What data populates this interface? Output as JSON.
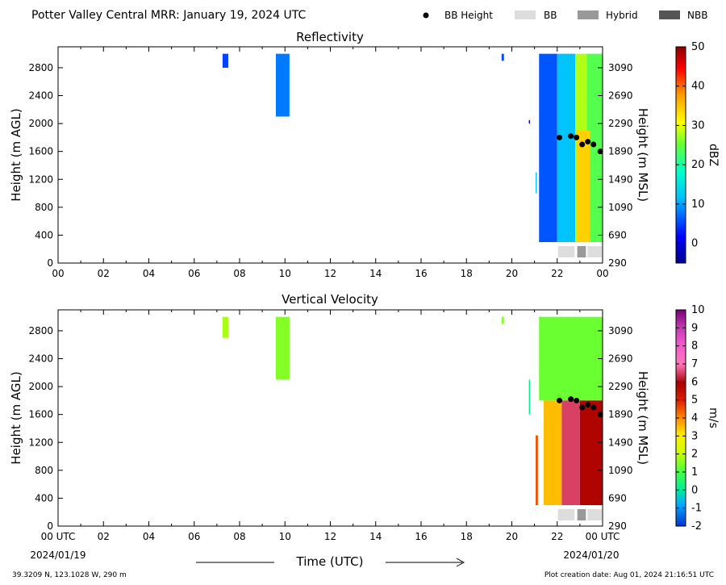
{
  "header": {
    "title": "Potter Valley Central MRR:  January 19, 2024 UTC",
    "legend": [
      {
        "label": "BB Height",
        "kind": "marker",
        "color": "#000000"
      },
      {
        "label": "BB",
        "kind": "swatch",
        "color": "#dddddd"
      },
      {
        "label": "Hybrid",
        "kind": "swatch",
        "color": "#999999"
      },
      {
        "label": "NBB",
        "kind": "swatch",
        "color": "#555555"
      }
    ]
  },
  "footer": {
    "location": "39.3209 N, 123.1028 W, 290 m",
    "creation": "Plot creation date: Aug 01, 2024 21:16:51 UTC",
    "xlabel": "Time (UTC)",
    "start_date": "2024/01/19",
    "end_date": "2024/01/20"
  },
  "colors": {
    "bb": "#dddddd",
    "hybrid": "#999999",
    "nbb": "#555555",
    "marker": "#000000",
    "axis": "#000000"
  },
  "chart_data": [
    {
      "type": "heatmap",
      "title": "Reflectivity",
      "xlabel": "",
      "ylabel": "Height (m AGL)",
      "ylabel_right": "Height (m MSL)",
      "colorbar_label": "dBZ",
      "xlim": [
        0,
        24
      ],
      "ylim": [
        0,
        3100
      ],
      "xticks": [
        "00",
        "02",
        "04",
        "06",
        "08",
        "10",
        "12",
        "14",
        "16",
        "18",
        "20",
        "22",
        "00"
      ],
      "yticks": [
        0,
        400,
        800,
        1200,
        1600,
        2000,
        2400,
        2800
      ],
      "yticks_right": [
        "290",
        "690",
        "1090",
        "1490",
        "1890",
        "2290",
        "2690",
        "3090"
      ],
      "colorbar_ticks": [
        "0",
        "10",
        "20",
        "30",
        "40",
        "50"
      ],
      "colorbar_range": [
        -5,
        50
      ],
      "colorscale": "jet",
      "echoes": [
        {
          "t0": 7.25,
          "t1": 7.5,
          "bottom": 2800,
          "top": 3000,
          "value": 5
        },
        {
          "t0": 9.6,
          "t1": 10.2,
          "bottom": 2100,
          "top": 3000,
          "value": 8
        },
        {
          "t0": 19.55,
          "t1": 19.65,
          "bottom": 2900,
          "top": 3000,
          "value": 5
        },
        {
          "t0": 20.75,
          "t1": 20.8,
          "bottom": 2000,
          "top": 2050,
          "value": 0
        },
        {
          "t0": 21.05,
          "t1": 21.1,
          "bottom": 1000,
          "top": 1300,
          "value": 12
        },
        {
          "t0": 21.2,
          "t1": 22.0,
          "bottom": 300,
          "top": 3000,
          "value": 6
        },
        {
          "t0": 22.0,
          "t1": 22.8,
          "bottom": 300,
          "top": 3000,
          "value": 12
        },
        {
          "t0": 22.8,
          "t1": 23.3,
          "bottom": 300,
          "top": 3000,
          "value": 28
        },
        {
          "t0": 23.3,
          "t1": 24.0,
          "bottom": 300,
          "top": 3000,
          "value": 24
        },
        {
          "t0": 22.85,
          "t1": 23.45,
          "bottom": 300,
          "top": 1900,
          "value": 34
        }
      ],
      "bb_height": {
        "x": [
          22.1,
          22.6,
          22.85,
          23.1,
          23.35,
          23.6,
          23.9
        ],
        "y": [
          1800,
          1820,
          1800,
          1700,
          1740,
          1700,
          1600
        ]
      },
      "bb_type": [
        {
          "t0": 22.0,
          "t1": 22.8,
          "type": "bb"
        },
        {
          "t0": 22.85,
          "t1": 23.3,
          "type": "hybrid"
        },
        {
          "t0": 23.3,
          "t1": 24.0,
          "type": "bb"
        }
      ]
    },
    {
      "type": "heatmap",
      "title": "Vertical Velocity",
      "xlabel": "Time (UTC)",
      "ylabel": "Height (m AGL)",
      "ylabel_right": "Height (m MSL)",
      "colorbar_label": "m/s",
      "xlim": [
        0,
        24
      ],
      "ylim": [
        0,
        3100
      ],
      "xticks": [
        "00 UTC",
        "02",
        "04",
        "06",
        "08",
        "10",
        "12",
        "14",
        "16",
        "18",
        "20",
        "22",
        "00 UTC"
      ],
      "yticks": [
        0,
        400,
        800,
        1200,
        1600,
        2000,
        2400,
        2800
      ],
      "yticks_right": [
        "290",
        "690",
        "1090",
        "1490",
        "1890",
        "2290",
        "2690",
        "3090"
      ],
      "colorbar_ticks": [
        "-2",
        "-1",
        "0",
        "1",
        "2",
        "3",
        "4",
        "5",
        "6",
        "7",
        "8",
        "9",
        "10"
      ],
      "colorbar_range": [
        -2,
        10
      ],
      "colorscale": "velocity",
      "echoes": [
        {
          "t0": 7.25,
          "t1": 7.5,
          "bottom": 2700,
          "top": 3000,
          "value": 1.8
        },
        {
          "t0": 9.6,
          "t1": 10.2,
          "bottom": 2100,
          "top": 3000,
          "value": 1.5
        },
        {
          "t0": 19.55,
          "t1": 19.65,
          "bottom": 2900,
          "top": 3000,
          "value": 1.5
        },
        {
          "t0": 20.75,
          "t1": 20.8,
          "bottom": 1600,
          "top": 2100,
          "value": 0.2
        },
        {
          "t0": 21.05,
          "t1": 21.15,
          "bottom": 300,
          "top": 1300,
          "value": 4.5
        },
        {
          "t0": 21.2,
          "t1": 24.0,
          "bottom": 1800,
          "top": 3000,
          "value": 1.3
        },
        {
          "t0": 21.4,
          "t1": 22.2,
          "bottom": 300,
          "top": 1800,
          "value": 3.5
        },
        {
          "t0": 22.2,
          "t1": 23.0,
          "bottom": 300,
          "top": 1800,
          "value": 6.5
        },
        {
          "t0": 23.0,
          "t1": 24.0,
          "bottom": 300,
          "top": 1800,
          "value": 5.8
        }
      ],
      "bb_height": {
        "x": [
          22.1,
          22.6,
          22.85,
          23.1,
          23.35,
          23.6,
          23.9
        ],
        "y": [
          1800,
          1820,
          1800,
          1700,
          1740,
          1700,
          1600
        ]
      },
      "bb_type": [
        {
          "t0": 22.0,
          "t1": 22.8,
          "type": "bb"
        },
        {
          "t0": 22.85,
          "t1": 23.3,
          "type": "hybrid"
        },
        {
          "t0": 23.3,
          "t1": 24.0,
          "type": "bb"
        }
      ]
    }
  ]
}
